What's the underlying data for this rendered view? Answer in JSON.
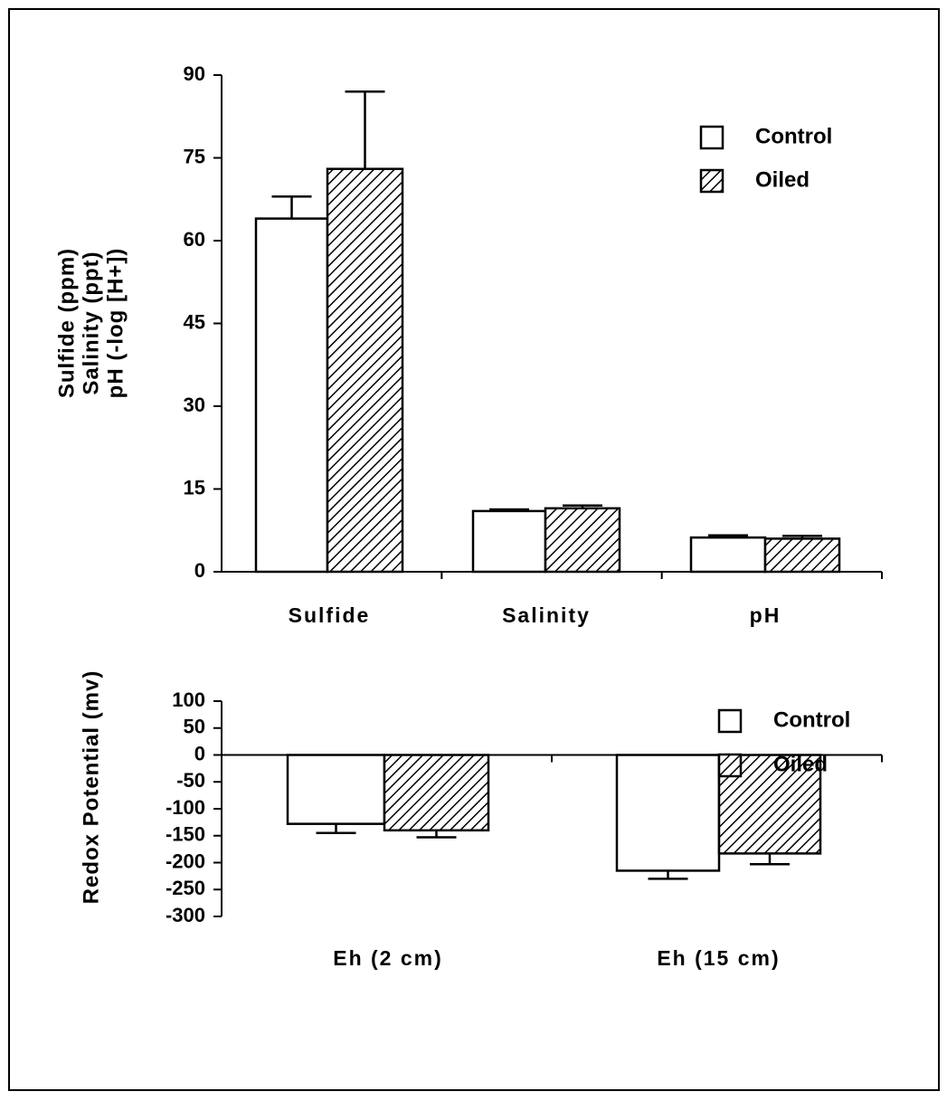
{
  "chart_data": [
    {
      "type": "bar",
      "ylabel": [
        "Sulfide  (ppm)",
        "Salinity  (ppt)",
        "pH  (-log  [H+])"
      ],
      "categories": [
        "Sulfide",
        "Salinity",
        "pH"
      ],
      "series": [
        {
          "name": "Control",
          "color": "#ffffff",
          "hatch": false,
          "values": [
            64,
            11,
            6.2
          ],
          "errors": [
            4,
            0.3,
            0.4
          ]
        },
        {
          "name": "Oiled",
          "color": "#ffffff",
          "hatch": true,
          "values": [
            73,
            11.5,
            6
          ],
          "errors": [
            14,
            0.5,
            0.5
          ]
        }
      ],
      "ylim": [
        0,
        90
      ],
      "yticks": [
        0,
        15,
        30,
        45,
        60,
        75,
        90
      ],
      "legend": "upper right"
    },
    {
      "type": "bar",
      "ylabel": [
        "Redox  Potential  (mv)"
      ],
      "categories": [
        "Eh  (2  cm)",
        "Eh  (15  cm)"
      ],
      "series": [
        {
          "name": "Control",
          "color": "#ffffff",
          "hatch": false,
          "values": [
            -128,
            -215
          ],
          "errors": [
            17,
            15
          ]
        },
        {
          "name": "Oiled",
          "color": "#ffffff",
          "hatch": true,
          "values": [
            -140,
            -183
          ],
          "errors": [
            13,
            20
          ]
        }
      ],
      "ylim": [
        -300,
        100
      ],
      "yticks": [
        -300,
        -250,
        -200,
        -150,
        -100,
        -50,
        0,
        50,
        100
      ],
      "legend": "upper right"
    }
  ]
}
